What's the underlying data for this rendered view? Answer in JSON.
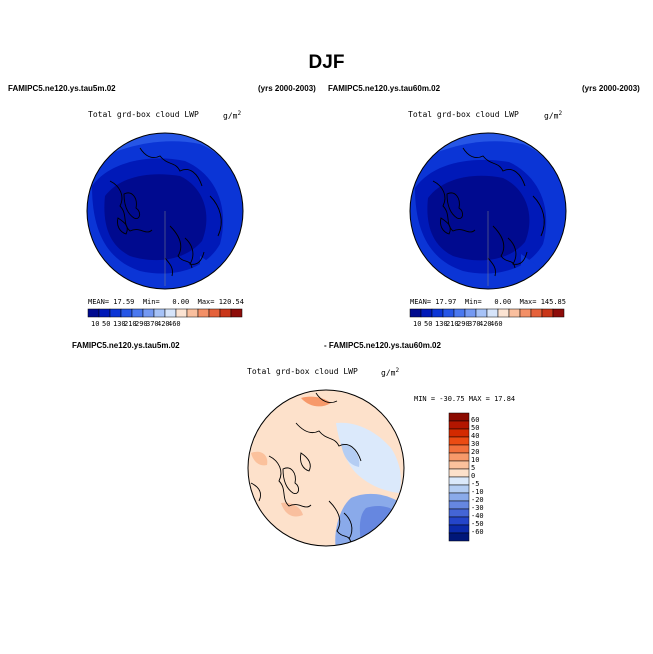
{
  "header": {
    "title": "DJF"
  },
  "panels": [
    {
      "case_label": "FAMIPC5.ne120.ys.tau5m.02",
      "years": "(yrs 2000-2003)",
      "plot_title": "Total grd-box cloud LWP",
      "units": "g/m",
      "units_exp": "2",
      "stats": {
        "mean_label": "MEAN=",
        "mean": "17.59",
        "min_label": "Min=",
        "min": "0.00",
        "max_label": "Max=",
        "max": "120.54"
      },
      "colorbar_ticks": [
        "10",
        "50",
        "130",
        "210",
        "290",
        "370",
        "420",
        "460"
      ]
    },
    {
      "case_label": "FAMIPC5.ne120.ys.tau60m.02",
      "years": "(yrs 2000-2003)",
      "plot_title": "Total grd-box cloud LWP",
      "units": "g/m",
      "units_exp": "2",
      "stats": {
        "mean_label": "MEAN=",
        "mean": "17.97",
        "min_label": "Min=",
        "min": "0.00",
        "max_label": "Max=",
        "max": "145.85"
      },
      "colorbar_ticks": [
        "10",
        "50",
        "130",
        "210",
        "290",
        "370",
        "420",
        "460"
      ]
    }
  ],
  "diff": {
    "case_a": "FAMIPC5.ne120.ys.tau5m.02",
    "case_b": "- FAMIPC5.ne120.ys.tau60m.02",
    "plot_title": "Total grd-box cloud LWP",
    "units": "g/m",
    "units_exp": "2",
    "minmax": "MIN = -30.75  MAX =  17.84",
    "colorbar_ticks": [
      "60",
      "50",
      "40",
      "30",
      "20",
      "10",
      "5",
      "0",
      "-5",
      "-10",
      "-20",
      "-30",
      "-40",
      "-50",
      "-60"
    ]
  },
  "colors": {
    "abs_scale": [
      "#000a8f",
      "#0019b8",
      "#0b35d6",
      "#2656e6",
      "#4a78ef",
      "#7499f2",
      "#a6c2f7",
      "#d6e4fa",
      "#fbe3d2",
      "#f9bf9e",
      "#f39067",
      "#e5623b",
      "#c93619",
      "#8e0d0a"
    ],
    "diff_scale": [
      "#8b0a00",
      "#b31600",
      "#d32a00",
      "#eb4b13",
      "#f2703c",
      "#f7996a",
      "#fbc19c",
      "#fde1cb",
      "#dbe9fb",
      "#b4cdf3",
      "#8aaaea",
      "#6687e0",
      "#4465d6",
      "#2445ca",
      "#0b2aab",
      "#001779"
    ]
  }
}
